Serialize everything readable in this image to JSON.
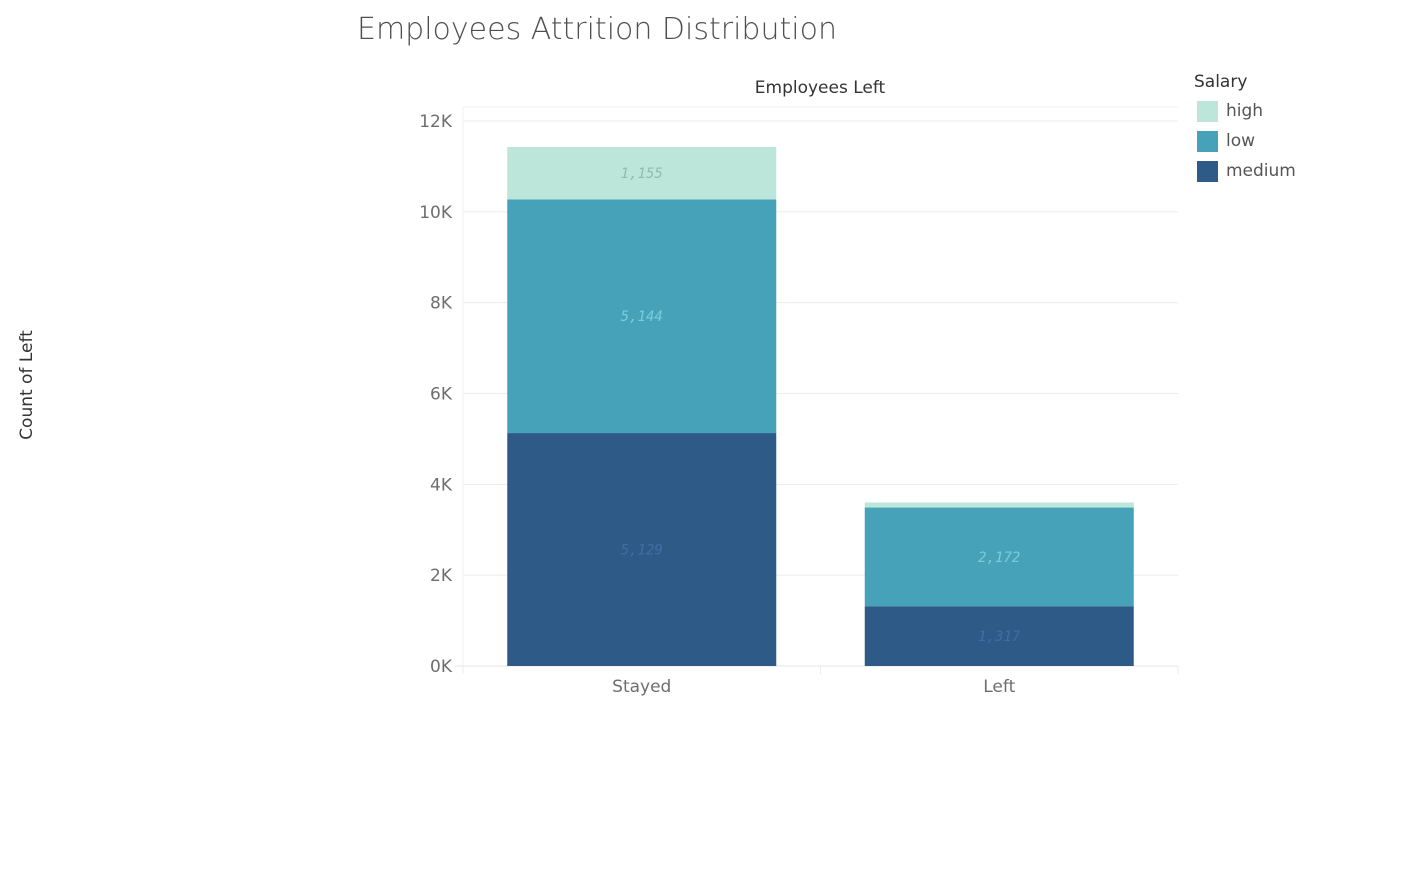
{
  "title": "Employees Attrition Distribution",
  "chart_data": {
    "type": "bar",
    "stacked": true,
    "header": "Employees Left",
    "ylabel": "Count of Left",
    "xlabel": "",
    "categories": [
      "Stayed",
      "Left"
    ],
    "ylim": [
      0,
      12000
    ],
    "yticks": [
      0,
      2000,
      4000,
      6000,
      8000,
      10000,
      12000
    ],
    "ytick_labels": [
      "0K",
      "2K",
      "4K",
      "6K",
      "8K",
      "10K",
      "12K"
    ],
    "grid": true,
    "legend_title": "Salary",
    "legend_position": "top-right",
    "series": [
      {
        "name": "medium",
        "color": "#2e5a87",
        "label_color": "#3f6fa0",
        "values": [
          5129,
          1317
        ],
        "labels": [
          "5,129",
          "1,317"
        ]
      },
      {
        "name": "low",
        "color": "#46a2b9",
        "label_color": "#78cde0",
        "values": [
          5144,
          2172
        ],
        "labels": [
          "5,144",
          "2,172"
        ]
      },
      {
        "name": "high",
        "color": "#bde6da",
        "label_color": "#8fbcb0",
        "values": [
          1155,
          111
        ],
        "labels": [
          "1,155",
          ""
        ]
      }
    ]
  }
}
